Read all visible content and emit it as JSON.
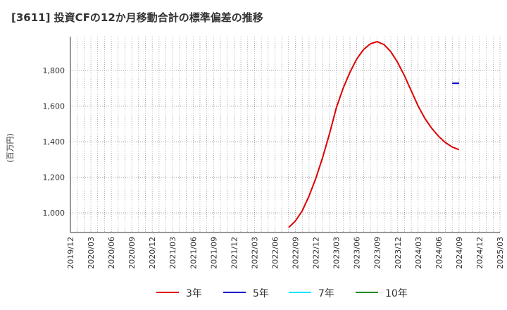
{
  "title": "[3611]  投資CFの12か月移動合計の標準偏差の推移",
  "chart_data": {
    "type": "line",
    "title": "[3611]  投資CFの12か月移動合計の標準偏差の推移",
    "ylabel": "(百万円)",
    "xlabel": "",
    "ylim": [
      890,
      1990
    ],
    "yticks": [
      1000,
      1200,
      1400,
      1600,
      1800
    ],
    "ytick_labels": [
      "1,000",
      "1,200",
      "1,400",
      "1,600",
      "1,800"
    ],
    "xticks": [
      "2019/12",
      "2020/03",
      "2020/06",
      "2020/09",
      "2020/12",
      "2021/03",
      "2021/06",
      "2021/09",
      "2021/12",
      "2022/03",
      "2022/06",
      "2022/09",
      "2022/12",
      "2023/03",
      "2023/06",
      "2023/09",
      "2023/12",
      "2024/03",
      "2024/06",
      "2024/09",
      "2024/12",
      "2025/03"
    ],
    "grid": true,
    "series": [
      {
        "name": "3年",
        "color": "#dd0000",
        "points": [
          [
            "2022/08",
            918
          ],
          [
            "2022/09",
            955
          ],
          [
            "2022/10",
            1012
          ],
          [
            "2022/11",
            1095
          ],
          [
            "2022/12",
            1195
          ],
          [
            "2023/01",
            1312
          ],
          [
            "2023/02",
            1445
          ],
          [
            "2023/03",
            1590
          ],
          [
            "2023/04",
            1700
          ],
          [
            "2023/05",
            1790
          ],
          [
            "2023/06",
            1865
          ],
          [
            "2023/07",
            1918
          ],
          [
            "2023/08",
            1950
          ],
          [
            "2023/09",
            1962
          ],
          [
            "2023/10",
            1945
          ],
          [
            "2023/11",
            1905
          ],
          [
            "2023/12",
            1845
          ],
          [
            "2024/01",
            1770
          ],
          [
            "2024/02",
            1685
          ],
          [
            "2024/03",
            1600
          ],
          [
            "2024/04",
            1530
          ],
          [
            "2024/05",
            1475
          ],
          [
            "2024/06",
            1430
          ],
          [
            "2024/07",
            1395
          ],
          [
            "2024/08",
            1370
          ],
          [
            "2024/09",
            1355
          ]
        ]
      },
      {
        "name": "5年",
        "color": "#0000cc",
        "points": [
          [
            "2024/08",
            1728
          ],
          [
            "2024/09",
            1728
          ]
        ]
      },
      {
        "name": "7年",
        "color": "#00e5ff",
        "points": []
      },
      {
        "name": "10年",
        "color": "#228b22",
        "points": []
      }
    ],
    "legend_position": "bottom"
  }
}
